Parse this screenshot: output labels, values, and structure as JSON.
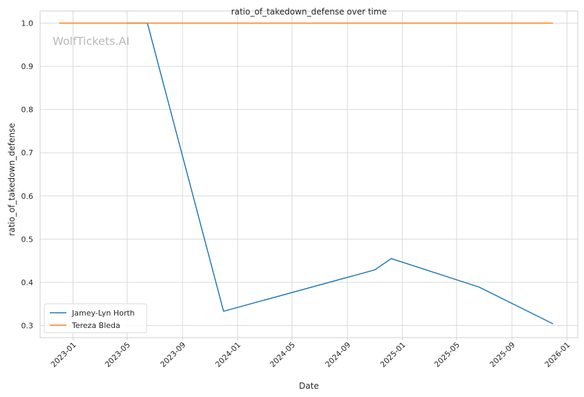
{
  "chart_data": {
    "type": "line",
    "title": "ratio_of_takedown_defense over time",
    "xlabel": "Date",
    "ylabel": "ratio_of_takedown_defense",
    "watermark": "WolfTickets.AI",
    "x_ticks": [
      "2023-01",
      "2023-05",
      "2023-09",
      "2024-01",
      "2024-05",
      "2024-09",
      "2025-01",
      "2025-05",
      "2025-09",
      "2026-01"
    ],
    "y_ticks": [
      "0.3",
      "0.4",
      "0.5",
      "0.6",
      "0.7",
      "0.8",
      "0.9",
      "1.0"
    ],
    "xlim": [
      "2022-10-20",
      "2026-01-25"
    ],
    "ylim": [
      0.272,
      1.028
    ],
    "grid": true,
    "legend_position": "lower-left",
    "series": [
      {
        "name": "Jamey-Lyn Horth",
        "color": "#1f77b4",
        "points": [
          {
            "x": "2023-04-30",
            "y": 1.0
          },
          {
            "x": "2023-06-15",
            "y": 1.0
          },
          {
            "x": "2023-12-01",
            "y": 0.333
          },
          {
            "x": "2024-11-01",
            "y": 0.429
          },
          {
            "x": "2024-12-07",
            "y": 0.455
          },
          {
            "x": "2025-06-20",
            "y": 0.389
          },
          {
            "x": "2025-12-01",
            "y": 0.304
          }
        ]
      },
      {
        "name": "Tereza Bleda",
        "color": "#ff7f0e",
        "points": [
          {
            "x": "2022-12-01",
            "y": 1.0
          },
          {
            "x": "2025-12-01",
            "y": 1.0
          }
        ]
      }
    ]
  }
}
